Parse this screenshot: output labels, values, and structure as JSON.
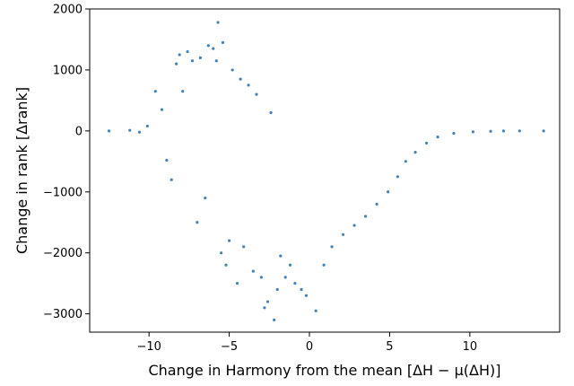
{
  "chart_data": {
    "type": "scatter",
    "title": "",
    "xlabel": "Change in Harmony from the mean [ΔH − μ(ΔH)]",
    "ylabel": "Change in rank [Δrank]",
    "xlim": [
      -13.7,
      15.6
    ],
    "ylim": [
      -3300,
      2000
    ],
    "xticks": [
      -10,
      -5,
      0,
      5,
      10
    ],
    "yticks": [
      -3000,
      -2000,
      -1000,
      0,
      1000,
      2000
    ],
    "xtick_labels": [
      "−10",
      "−5",
      "0",
      "5",
      "10"
    ],
    "ytick_labels": [
      "−3000",
      "−2000",
      "−1000",
      "0",
      "1000",
      "2000"
    ],
    "grid": false,
    "legend": "none",
    "point_color": "#4682b4",
    "series": [
      {
        "points": [
          [
            -12.5,
            0
          ],
          [
            -11.2,
            10
          ],
          [
            -10.6,
            -20
          ],
          [
            -10.1,
            80
          ],
          [
            -9.6,
            650
          ],
          [
            -9.2,
            350
          ],
          [
            -8.9,
            -480
          ],
          [
            -8.6,
            -800
          ],
          [
            -8.3,
            1100
          ],
          [
            -8.1,
            1250
          ],
          [
            -7.9,
            650
          ],
          [
            -7.6,
            1300
          ],
          [
            -7.3,
            1150
          ],
          [
            -7.0,
            -1500
          ],
          [
            -6.8,
            1200
          ],
          [
            -6.5,
            -1100
          ],
          [
            -6.3,
            1400
          ],
          [
            -6.0,
            1350
          ],
          [
            -5.8,
            1150
          ],
          [
            -5.7,
            1780
          ],
          [
            -5.5,
            -2000
          ],
          [
            -5.4,
            1450
          ],
          [
            -5.2,
            -2200
          ],
          [
            -5.0,
            -1800
          ],
          [
            -4.8,
            1000
          ],
          [
            -4.5,
            -2500
          ],
          [
            -4.3,
            850
          ],
          [
            -4.1,
            -1900
          ],
          [
            -3.8,
            750
          ],
          [
            -3.5,
            -2300
          ],
          [
            -3.3,
            600
          ],
          [
            -3.0,
            -2400
          ],
          [
            -2.8,
            -2900
          ],
          [
            -2.6,
            -2800
          ],
          [
            -2.4,
            300
          ],
          [
            -2.2,
            -3100
          ],
          [
            -2.0,
            -2600
          ],
          [
            -1.8,
            -2050
          ],
          [
            -1.5,
            -2400
          ],
          [
            -1.2,
            -2200
          ],
          [
            -0.9,
            -2500
          ],
          [
            -0.5,
            -2600
          ],
          [
            -0.2,
            -2700
          ],
          [
            0.4,
            -2950
          ],
          [
            0.9,
            -2200
          ],
          [
            1.4,
            -1900
          ],
          [
            2.1,
            -1700
          ],
          [
            2.8,
            -1550
          ],
          [
            3.5,
            -1400
          ],
          [
            4.2,
            -1200
          ],
          [
            4.9,
            -1000
          ],
          [
            5.5,
            -750
          ],
          [
            6.0,
            -500
          ],
          [
            6.6,
            -350
          ],
          [
            7.3,
            -200
          ],
          [
            8.0,
            -100
          ],
          [
            9.0,
            -40
          ],
          [
            10.2,
            -15
          ],
          [
            11.3,
            -5
          ],
          [
            12.1,
            0
          ],
          [
            13.1,
            0
          ],
          [
            14.6,
            0
          ]
        ]
      }
    ]
  }
}
